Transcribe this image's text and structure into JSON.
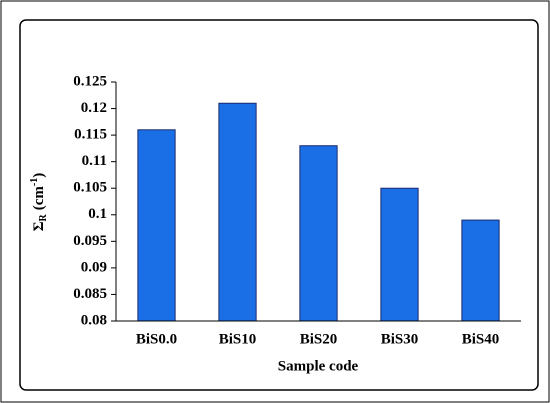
{
  "chart_data": {
    "type": "bar",
    "x_label": "Sample code",
    "y_label": {
      "symbol": "Σ",
      "subscript": "R",
      "unit": "(cm",
      "superscript": "-1",
      "close": ")"
    },
    "categories": [
      "BiS0.0",
      "BiS10",
      "BiS20",
      "BiS30",
      "BiS40"
    ],
    "values": [
      0.116,
      0.121,
      0.113,
      0.105,
      0.099
    ],
    "color": "#1a6fe6",
    "ylim": [
      0.08,
      0.125
    ],
    "yticks": [
      0.08,
      0.085,
      0.09,
      0.095,
      0.1,
      0.105,
      0.11,
      0.115,
      0.12,
      0.125
    ],
    "grid": false
  }
}
